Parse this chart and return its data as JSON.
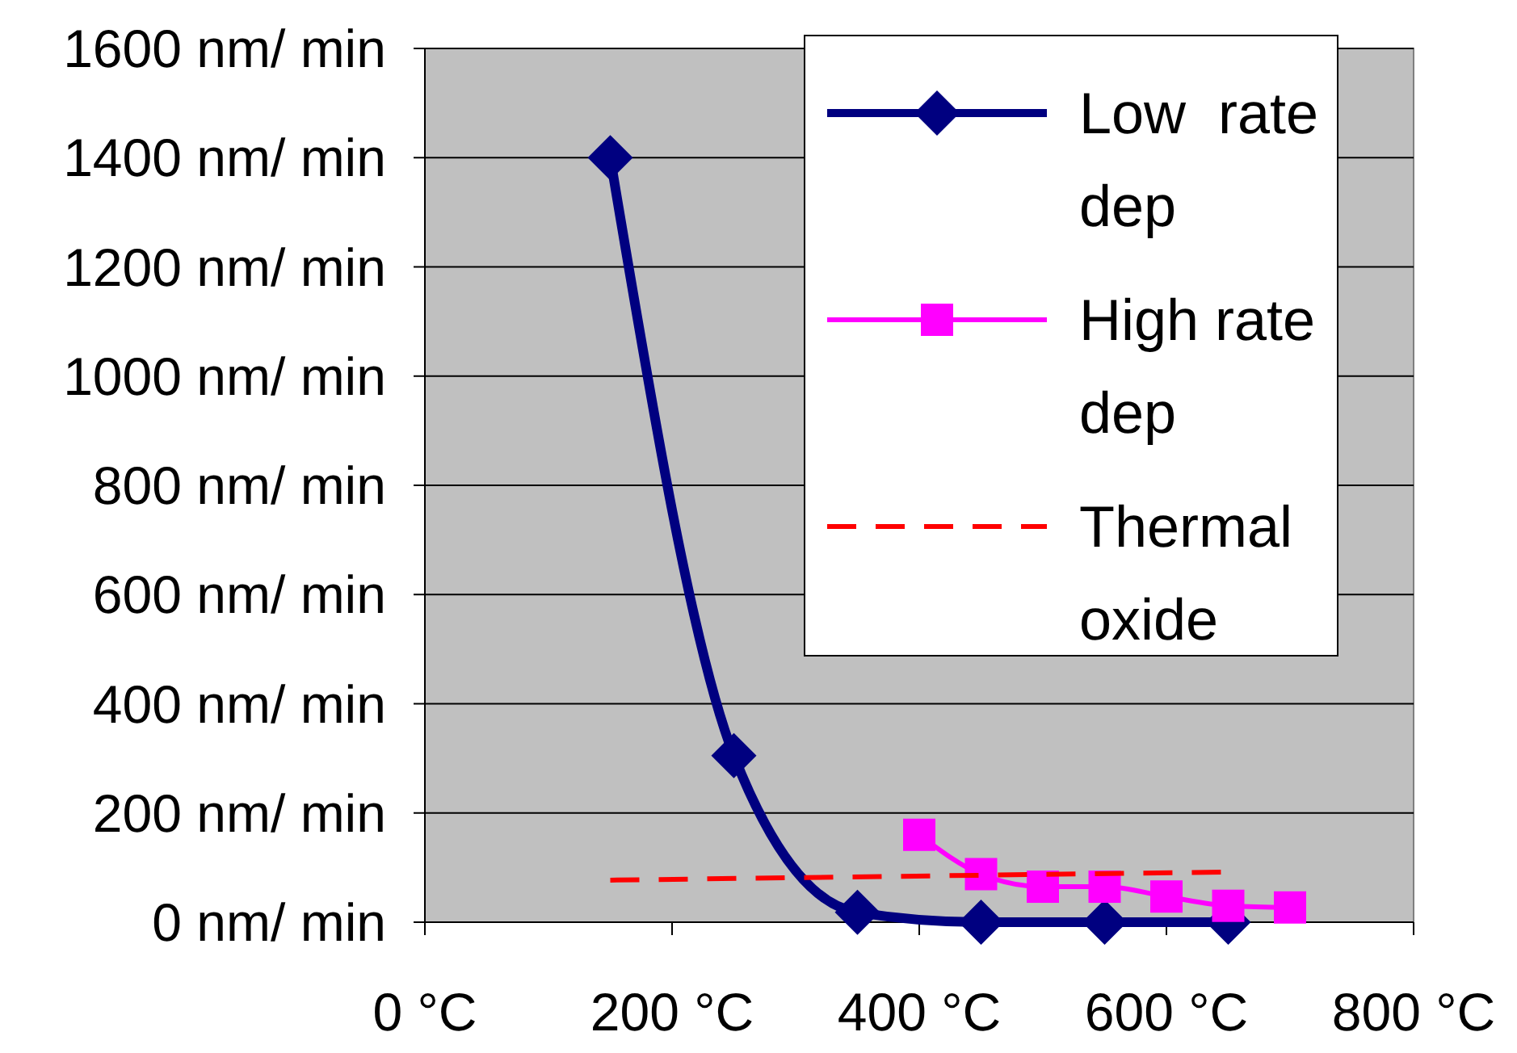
{
  "chart_data": {
    "type": "line",
    "xlim": [
      0,
      800
    ],
    "ylim": [
      0,
      1600
    ],
    "xticks": [
      {
        "value": 0,
        "label": "0 °C"
      },
      {
        "value": 200,
        "label": "200 °C"
      },
      {
        "value": 400,
        "label": "400 °C"
      },
      {
        "value": 600,
        "label": "600 °C"
      },
      {
        "value": 800,
        "label": "800 °C"
      }
    ],
    "yticks": [
      {
        "value": 0,
        "label": "0 nm/ min"
      },
      {
        "value": 200,
        "label": "200 nm/ min"
      },
      {
        "value": 400,
        "label": "400 nm/ min"
      },
      {
        "value": 600,
        "label": "600 nm/ min"
      },
      {
        "value": 800,
        "label": "800 nm/ min"
      },
      {
        "value": 1000,
        "label": "1000 nm/ min"
      },
      {
        "value": 1200,
        "label": "1200 nm/ min"
      },
      {
        "value": 1400,
        "label": "1400 nm/ min"
      },
      {
        "value": 1600,
        "label": "1600 nm/ min"
      }
    ],
    "grid": "y",
    "legend": "top right",
    "series": [
      {
        "name": "Low  rate dep",
        "color": "#000080",
        "x": [
          150,
          250,
          350,
          450,
          550,
          650
        ],
        "values": [
          1400,
          305,
          18,
          0,
          0,
          0
        ],
        "marker": "diamond",
        "line_style": "solid"
      },
      {
        "name": "High rate dep",
        "color": "#ff00ff",
        "x": [
          400,
          450,
          500,
          550,
          600,
          650,
          700
        ],
        "values": [
          160,
          88,
          65,
          65,
          47,
          30,
          27
        ],
        "marker": "square",
        "line_style": "solid"
      },
      {
        "name": "Thermal oxide",
        "color": "#ff0000",
        "x": [
          150,
          650
        ],
        "values": [
          77,
          92
        ],
        "marker": "none",
        "line_style": "dashed"
      }
    ]
  }
}
